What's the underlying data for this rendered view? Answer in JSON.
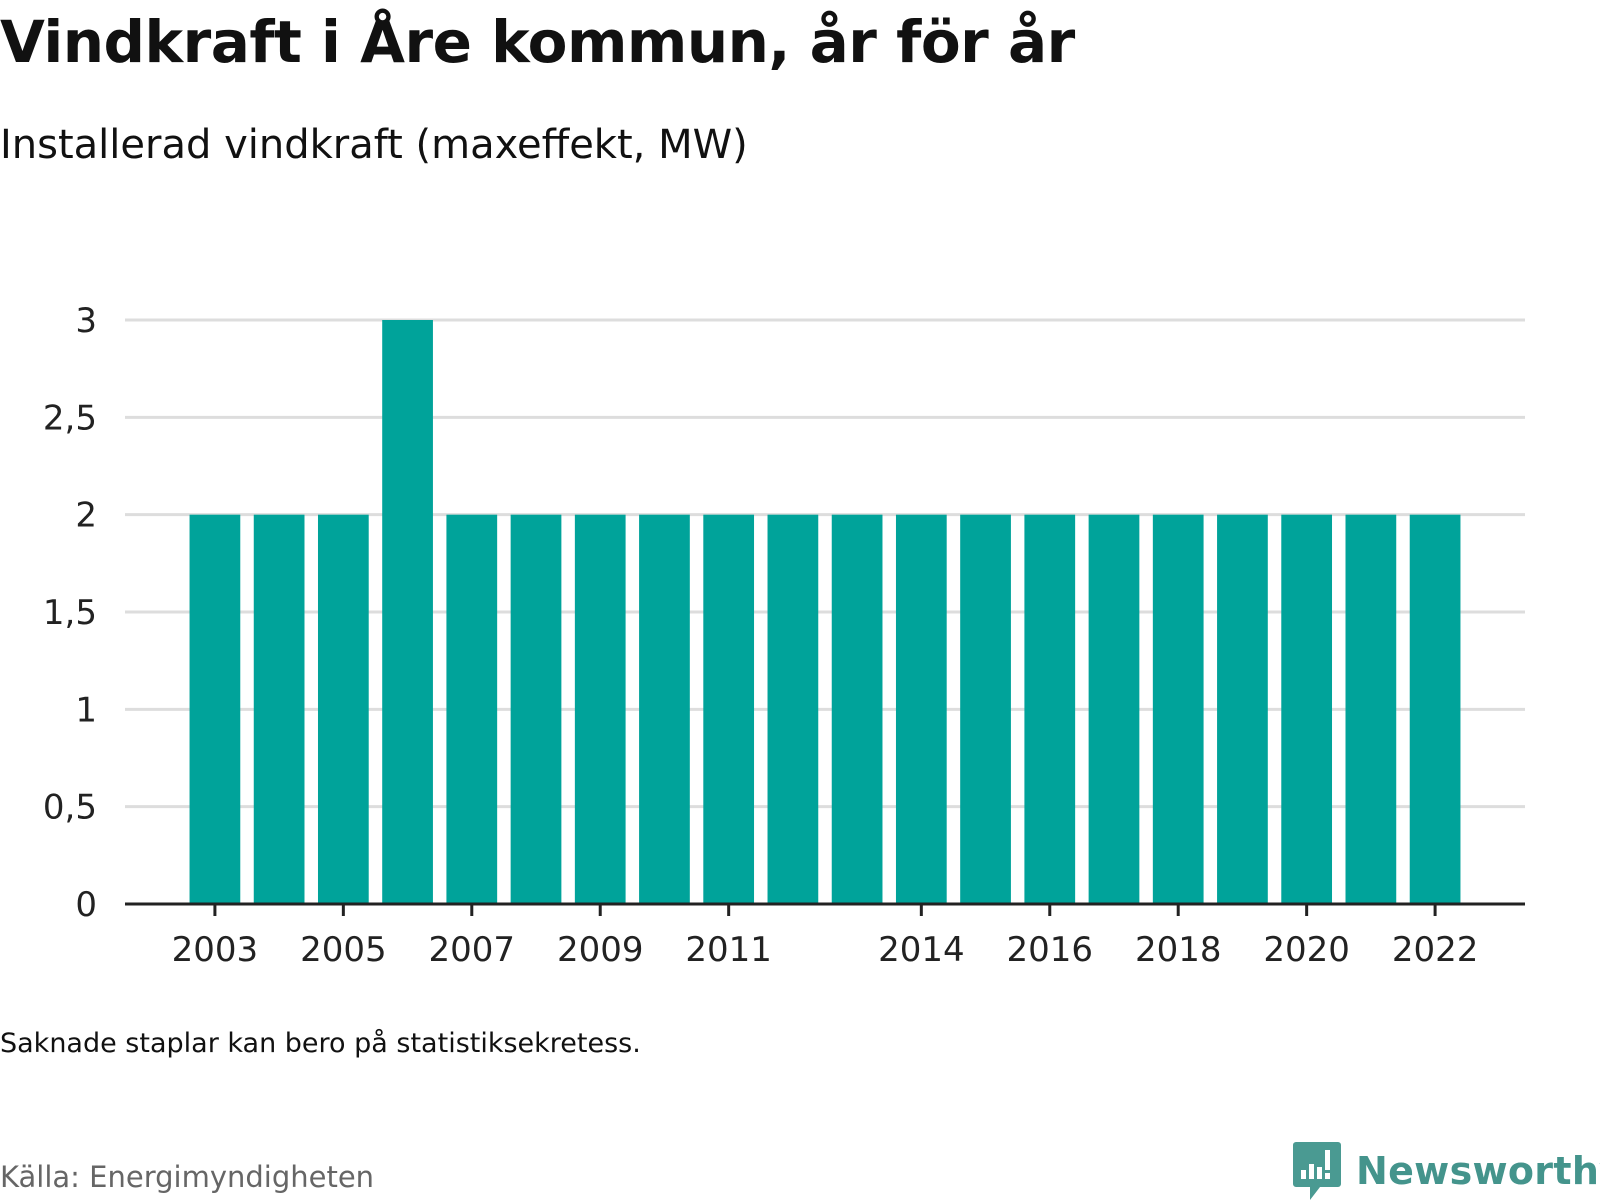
{
  "title": "Vindkraft i Åre kommun, år för år",
  "subtitle": "Installerad vindkraft (maxeffekt, MW)",
  "note": "Saknade staplar kan bero på statistiksekretess.",
  "source": "Källa: Energimyndigheten",
  "brand": {
    "name": "Newsworthy",
    "icon": "newsworthy-logo-icon",
    "color": "#4a9a92"
  },
  "colors": {
    "bar": "#00a39a",
    "grid": "#dddddd",
    "axis": "#222222",
    "tick_text": "#222222"
  },
  "chart_data": {
    "type": "bar",
    "x": [
      2003,
      2004,
      2005,
      2006,
      2007,
      2008,
      2009,
      2010,
      2011,
      2012,
      2013,
      2014,
      2015,
      2016,
      2017,
      2018,
      2019,
      2020,
      2021,
      2022
    ],
    "values": [
      2,
      2,
      2,
      3,
      2,
      2,
      2,
      2,
      2,
      2,
      2,
      2,
      2,
      2,
      2,
      2,
      2,
      2,
      2,
      2
    ],
    "xticks": [
      "2003",
      "2005",
      "2007",
      "2009",
      "2011",
      "2014",
      "2016",
      "2018",
      "2020",
      "2022"
    ],
    "yticks": [
      "0",
      "0,5",
      "1",
      "1,5",
      "2",
      "2,5",
      "3"
    ],
    "ytick_values": [
      0,
      0.5,
      1,
      1.5,
      2,
      2.5,
      3
    ],
    "ylim": [
      0,
      3
    ],
    "xlim": [
      2001.6,
      2023.4
    ],
    "grid": true,
    "xlabel": "",
    "ylabel": ""
  }
}
